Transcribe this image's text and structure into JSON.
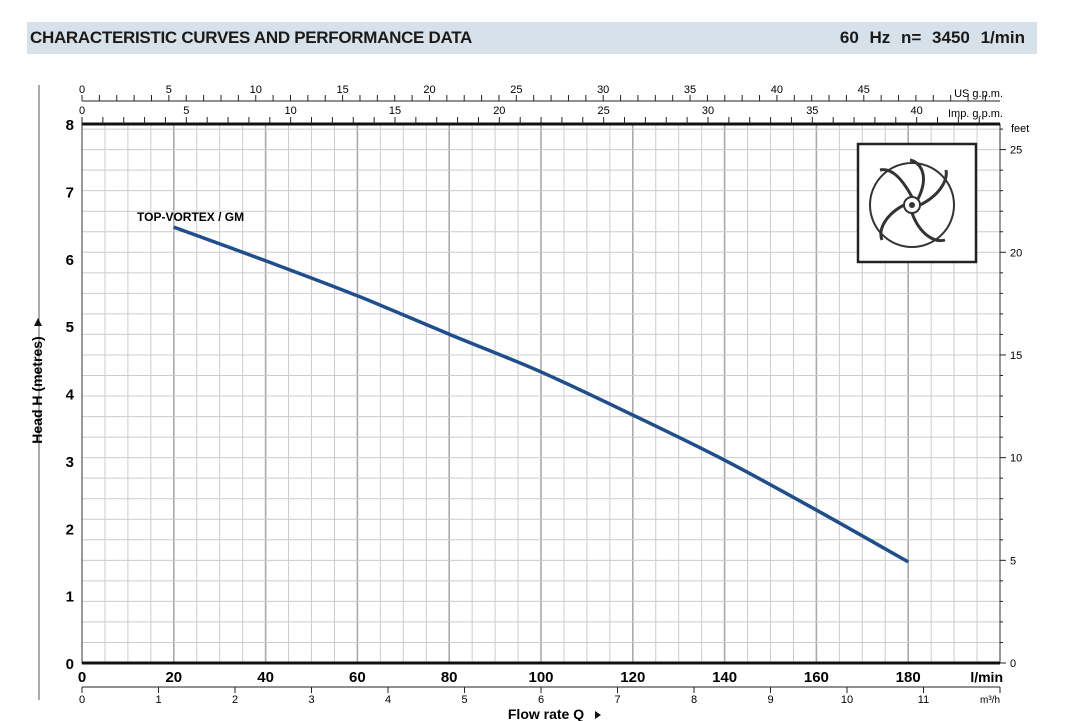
{
  "header": {
    "title": "CHARACTERISTIC CURVES AND PERFORMANCE DATA",
    "conditions": "60 Hz   n= 3450  1/min"
  },
  "chart_data": {
    "type": "line",
    "ylabel": "Head H (metres)",
    "xlabel": "Flow rate Q",
    "x_unit": "l/min",
    "xlim": [
      0,
      200
    ],
    "ylim": [
      0,
      8
    ],
    "x_ticks": [
      0,
      20,
      40,
      60,
      80,
      100,
      120,
      140,
      160,
      180
    ],
    "y_ticks": [
      0,
      1,
      2,
      3,
      4,
      5,
      6,
      7,
      8
    ],
    "secondary_axes": {
      "us_gpm": {
        "label": "US g.p.m.",
        "ticks": [
          0,
          5,
          10,
          15,
          20,
          25,
          30,
          35,
          40,
          45
        ]
      },
      "imp_gpm": {
        "label": "Imp. g.p.m.",
        "ticks": [
          0,
          5,
          10,
          15,
          20,
          25,
          30,
          35,
          40
        ]
      },
      "m3h": {
        "label": "m³/h",
        "ticks": [
          0,
          1,
          2,
          3,
          4,
          5,
          6,
          7,
          8,
          9,
          10,
          11
        ]
      },
      "feet": {
        "label": "feet",
        "ticks": [
          0,
          5,
          10,
          15,
          20,
          25
        ]
      }
    },
    "grid": true,
    "series": [
      {
        "name": "TOP-VORTEX / GM",
        "color": "#1f4e8c",
        "x": [
          20,
          40,
          60,
          80,
          100,
          120,
          140,
          160,
          180
        ],
        "y": [
          6.47,
          5.97,
          5.45,
          4.88,
          4.32,
          3.68,
          3.01,
          2.27,
          1.5
        ]
      }
    ]
  }
}
